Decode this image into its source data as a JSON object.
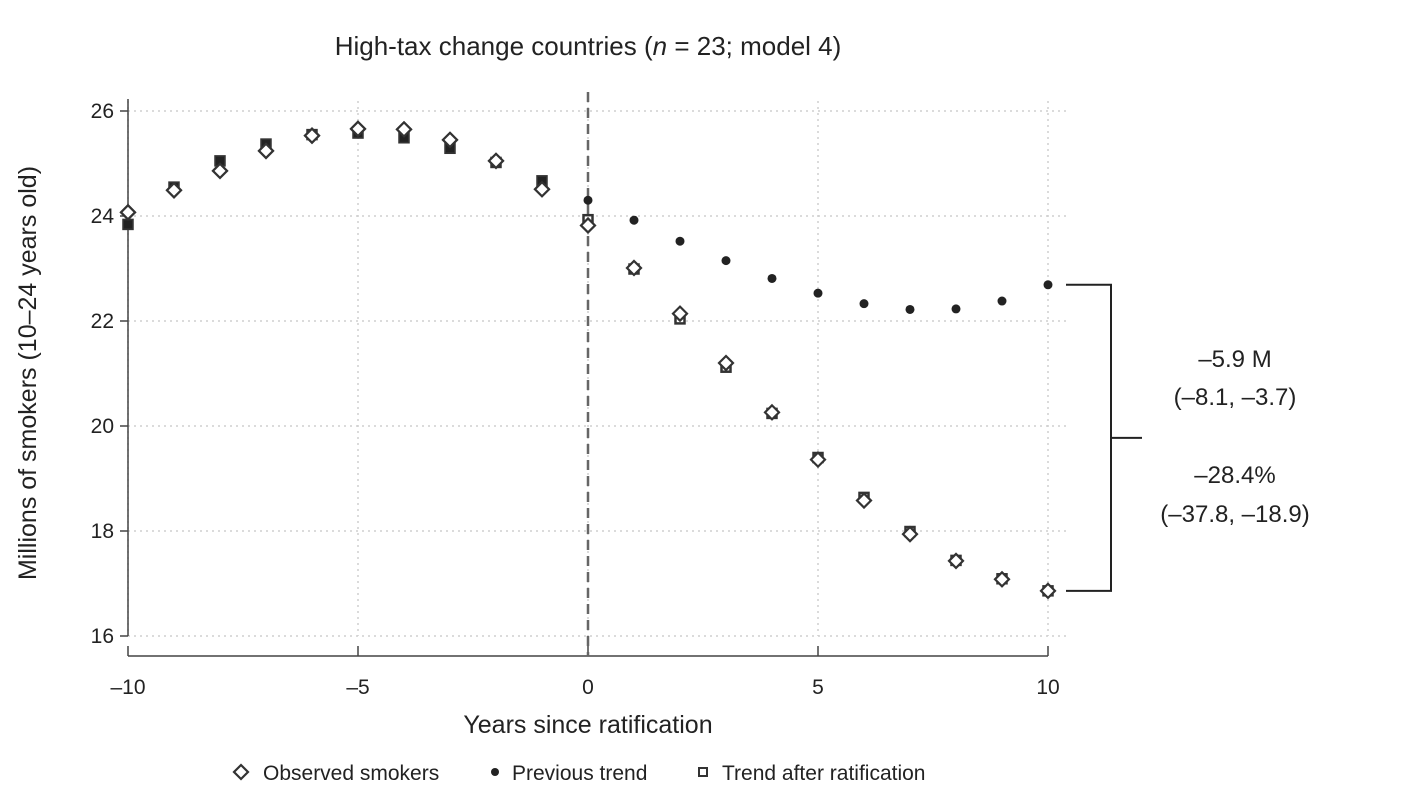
{
  "chart_data": {
    "type": "scatter",
    "title_prefix": "High-tax change countries (",
    "title_n": "n",
    "title_suffix": " = 23; model 4)",
    "xlabel": "Years since ratification",
    "ylabel": "Millions of smokers (10–24 years old)",
    "xlim": [
      -10,
      10
    ],
    "ylim": [
      16,
      26
    ],
    "x_ticks": [
      -10,
      -5,
      0,
      5,
      10
    ],
    "x_tick_labels": [
      "–10",
      "–5",
      "0",
      "5",
      "10"
    ],
    "y_ticks": [
      16,
      18,
      20,
      22,
      24,
      26
    ],
    "y_tick_labels": [
      "16",
      "18",
      "20",
      "22",
      "24",
      "26"
    ],
    "grid": "dotted",
    "ratification_line_x": 0,
    "series": [
      {
        "name": "Observed smokers",
        "marker": "diamond-open",
        "color": "#333333",
        "x": [
          -10,
          -9,
          -8,
          -7,
          -6,
          -5,
          -4,
          -3,
          -2,
          -1,
          0,
          1,
          2,
          3,
          4,
          5,
          6,
          7,
          8,
          9,
          10
        ],
        "y": [
          24.07,
          24.49,
          24.86,
          25.24,
          25.53,
          25.66,
          25.65,
          25.45,
          25.05,
          24.51,
          23.82,
          23.01,
          22.14,
          21.2,
          20.26,
          19.36,
          18.58,
          17.94,
          17.43,
          17.08,
          16.86
        ]
      },
      {
        "name": "Previous trend",
        "marker": "circle-filled",
        "color": "#222222",
        "x": [
          0,
          1,
          2,
          3,
          4,
          5,
          6,
          7,
          8,
          9,
          10
        ],
        "y": [
          24.3,
          23.92,
          23.52,
          23.15,
          22.81,
          22.53,
          22.33,
          22.22,
          22.23,
          22.38,
          22.69
        ]
      },
      {
        "name": "Trend after ratification",
        "marker": "square-open",
        "color": "#333333",
        "x": [
          -10,
          -9,
          -8,
          -7,
          -6,
          -5,
          -4,
          -3,
          -2,
          -1,
          0,
          1,
          2,
          3,
          4,
          5,
          6,
          7,
          8,
          9,
          10
        ],
        "y": [
          23.84,
          24.55,
          25.05,
          25.37,
          25.55,
          25.58,
          25.49,
          25.29,
          25.02,
          24.67,
          23.93,
          22.99,
          22.04,
          21.12,
          20.24,
          19.4,
          18.64,
          17.99,
          17.44,
          17.09,
          16.86
        ]
      }
    ],
    "bracket": {
      "top_y": 22.69,
      "bottom_y": 16.86
    },
    "annotations": [
      "–5.9 M",
      "(–8.1, –3.7)",
      "–28.4%",
      "(–37.8, –18.9)"
    ],
    "legend_position": "bottom"
  }
}
